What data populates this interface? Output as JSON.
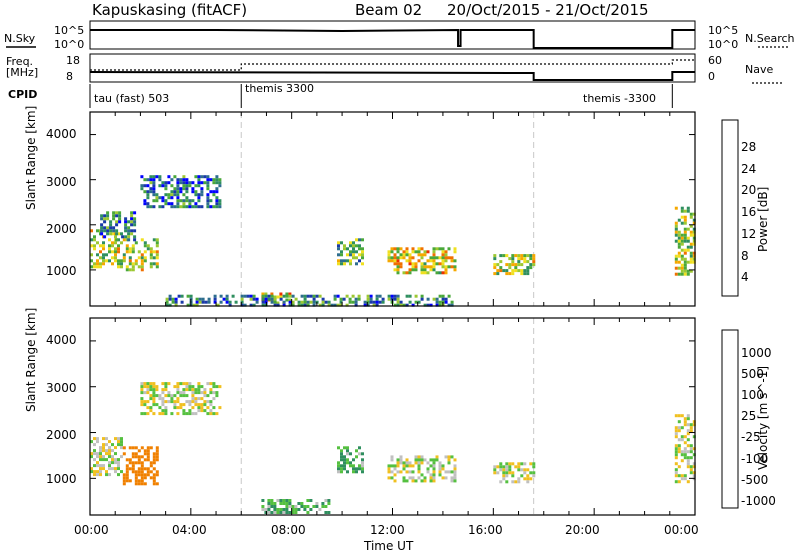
{
  "header": {
    "station": "Kapuskasing (fitACF)",
    "beam": "Beam 02",
    "dates": "20/Oct/2015 - 21/Oct/2015"
  },
  "top_panels": {
    "nsky_label": "N.Sky",
    "nsky_ticks": [
      "10^5",
      "10^0"
    ],
    "nsearch_label": "N.Search",
    "nsearch_ticks": [
      "10^5",
      "10^0"
    ],
    "freq_label_1": "Freq.",
    "freq_label_2": "[MHz]",
    "freq_ticks": [
      "18",
      "8"
    ],
    "nave_label": "Nave",
    "nave_ticks": [
      "60",
      "0"
    ],
    "cpid_label": "CPID",
    "cpid_segments": [
      {
        "name": "tau (fast) 503",
        "start": 0
      },
      {
        "name": "themis 3300",
        "start": 6
      },
      {
        "name": "themis -3300",
        "start": 22.1
      }
    ]
  },
  "colorbars": {
    "power": {
      "label": "Power [dB]",
      "ticks": [
        "28",
        "24",
        "20",
        "16",
        "12",
        "8",
        "4"
      ],
      "colors": [
        "#0000ff",
        "#1a3aa8",
        "#2e6e8e",
        "#2f8f5f",
        "#4aa83a",
        "#9cc832",
        "#f0e020",
        "#f5a800",
        "#f07000",
        "#ee3000",
        "#e00000"
      ]
    },
    "velocity": {
      "label": "Velocity [m s^-1]",
      "ticks": [
        "1000",
        "500",
        "100",
        "25",
        "-25",
        "-100",
        "-500",
        "-1000"
      ],
      "colors": [
        "#1030b0",
        "#2a6aa8",
        "#2f8f5f",
        "#55c040",
        "#c0c0c0",
        "#c0c0c0",
        "#f0c020",
        "#f08000",
        "#ef4000",
        "#e00000"
      ]
    }
  },
  "chart_data": [
    {
      "type": "heatmap",
      "name": "Power",
      "xlabel": "Time UT",
      "ylabel": "Slant Range [km]",
      "xlim": [
        0,
        24
      ],
      "ylim": [
        200,
        4500
      ],
      "yticks": [
        "4000",
        "3000",
        "2000",
        "1000"
      ],
      "xticks": [
        "00:00",
        "04:00",
        "08:00",
        "12:00",
        "16:00",
        "20:00",
        "00:00"
      ],
      "patches": [
        {
          "t0": 0.0,
          "t1": 1.3,
          "r0": 1100,
          "r1": 1900,
          "level": 16
        },
        {
          "t0": 1.3,
          "t1": 2.7,
          "r0": 1000,
          "r1": 1700,
          "level": 16
        },
        {
          "t0": 0.4,
          "t1": 1.8,
          "r0": 1700,
          "r1": 2300,
          "level": 8
        },
        {
          "t0": 2.0,
          "t1": 5.2,
          "r0": 2400,
          "r1": 3100,
          "level": 6
        },
        {
          "t0": 6.8,
          "t1": 8.0,
          "r0": 250,
          "r1": 500,
          "level": 20
        },
        {
          "t0": 3.0,
          "t1": 14.5,
          "r0": 200,
          "r1": 450,
          "level": 8
        },
        {
          "t0": 9.8,
          "t1": 10.8,
          "r0": 1150,
          "r1": 1700,
          "level": 12
        },
        {
          "t0": 11.8,
          "t1": 14.5,
          "r0": 950,
          "r1": 1500,
          "level": 18
        },
        {
          "t0": 16.0,
          "t1": 17.6,
          "r0": 950,
          "r1": 1350,
          "level": 16
        },
        {
          "t0": 23.2,
          "t1": 24.0,
          "r0": 900,
          "r1": 2400,
          "level": 16
        }
      ]
    },
    {
      "type": "heatmap",
      "name": "Velocity",
      "xlabel": "Time UT",
      "ylabel": "Slant Range [km]",
      "xlim": [
        0,
        24
      ],
      "ylim": [
        200,
        4500
      ],
      "yticks": [
        "4000",
        "3000",
        "2000",
        "1000"
      ],
      "xticks": [
        "00:00",
        "04:00",
        "08:00",
        "12:00",
        "16:00",
        "20:00",
        "00:00"
      ],
      "patches": [
        {
          "t0": 0.0,
          "t1": 1.3,
          "r0": 1100,
          "r1": 1900,
          "level": 0
        },
        {
          "t0": 1.3,
          "t1": 2.7,
          "r0": 900,
          "r1": 1700,
          "level": -300
        },
        {
          "t0": 2.0,
          "t1": 5.2,
          "r0": 2400,
          "r1": 3100,
          "level": 0
        },
        {
          "t0": 6.8,
          "t1": 9.5,
          "r0": 250,
          "r1": 550,
          "level": 80
        },
        {
          "t0": 9.8,
          "t1": 10.8,
          "r0": 1150,
          "r1": 1700,
          "level": 100
        },
        {
          "t0": 11.8,
          "t1": 14.5,
          "r0": 950,
          "r1": 1500,
          "level": 0
        },
        {
          "t0": 16.0,
          "t1": 17.6,
          "r0": 950,
          "r1": 1350,
          "level": 0
        },
        {
          "t0": 23.2,
          "t1": 24.0,
          "r0": 900,
          "r1": 2400,
          "level": 0
        }
      ]
    }
  ]
}
